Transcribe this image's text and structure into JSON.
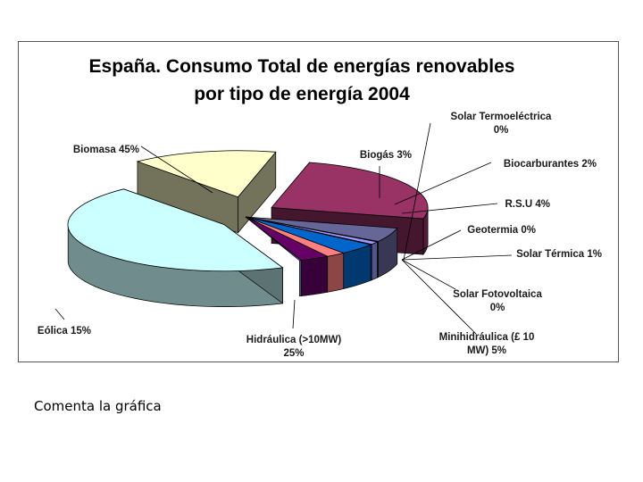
{
  "chart_data": {
    "type": "pie",
    "title_lines": [
      "España. Consumo Total de energías renovables",
      "por tipo de energía 2004"
    ],
    "three_d": true,
    "slices": [
      {
        "key": "biomasa",
        "name": "Biomasa",
        "value": 45,
        "label": "Biomasa 45%",
        "color": "#ccffff"
      },
      {
        "key": "eolica",
        "name": "Eólica",
        "value": 15,
        "label": "Eólica 15%",
        "color": "#ffffcc"
      },
      {
        "key": "hidraulica",
        "name": "Hidráulica (>10MW)",
        "value": 25,
        "label": "Hidráulica (>10MW)\n25%",
        "color": "#993366"
      },
      {
        "key": "minihidraulica",
        "name": "Minihidráulica (£ 10 MW)",
        "value": 5,
        "label": "Minihidráulica (£ 10\nMW) 5%",
        "color": "#666699"
      },
      {
        "key": "fotovoltaica",
        "name": "Solar Fotovoltaica",
        "value": 0,
        "label": "Solar Fotovoltaica\n0%",
        "color": "#c0c0ff"
      },
      {
        "key": "termica",
        "name": "Solar Térmica",
        "value": 1,
        "label": "Solar Térmica 1%",
        "color": "#9999ff"
      },
      {
        "key": "geotermia",
        "name": "Geotermia",
        "value": 0,
        "label": "Geotermia 0%",
        "color": "#3366ff"
      },
      {
        "key": "rsu",
        "name": "R.S.U",
        "value": 4,
        "label": "R.S.U 4%",
        "color": "#0066cc"
      },
      {
        "key": "biocarburantes",
        "name": "Biocarburantes",
        "value": 2,
        "label": "Biocarburantes 2%",
        "color": "#ff8080"
      },
      {
        "key": "biogas",
        "name": "Biogás",
        "value": 3,
        "label": "Biogás 3%",
        "color": "#660066"
      },
      {
        "key": "termoelectrica",
        "name": "Solar Termoeléctrica",
        "value": 0,
        "label": "Solar Termoeléctrica\n0%",
        "color": "#99ccff"
      }
    ]
  },
  "caption": "Comenta la gráfica"
}
